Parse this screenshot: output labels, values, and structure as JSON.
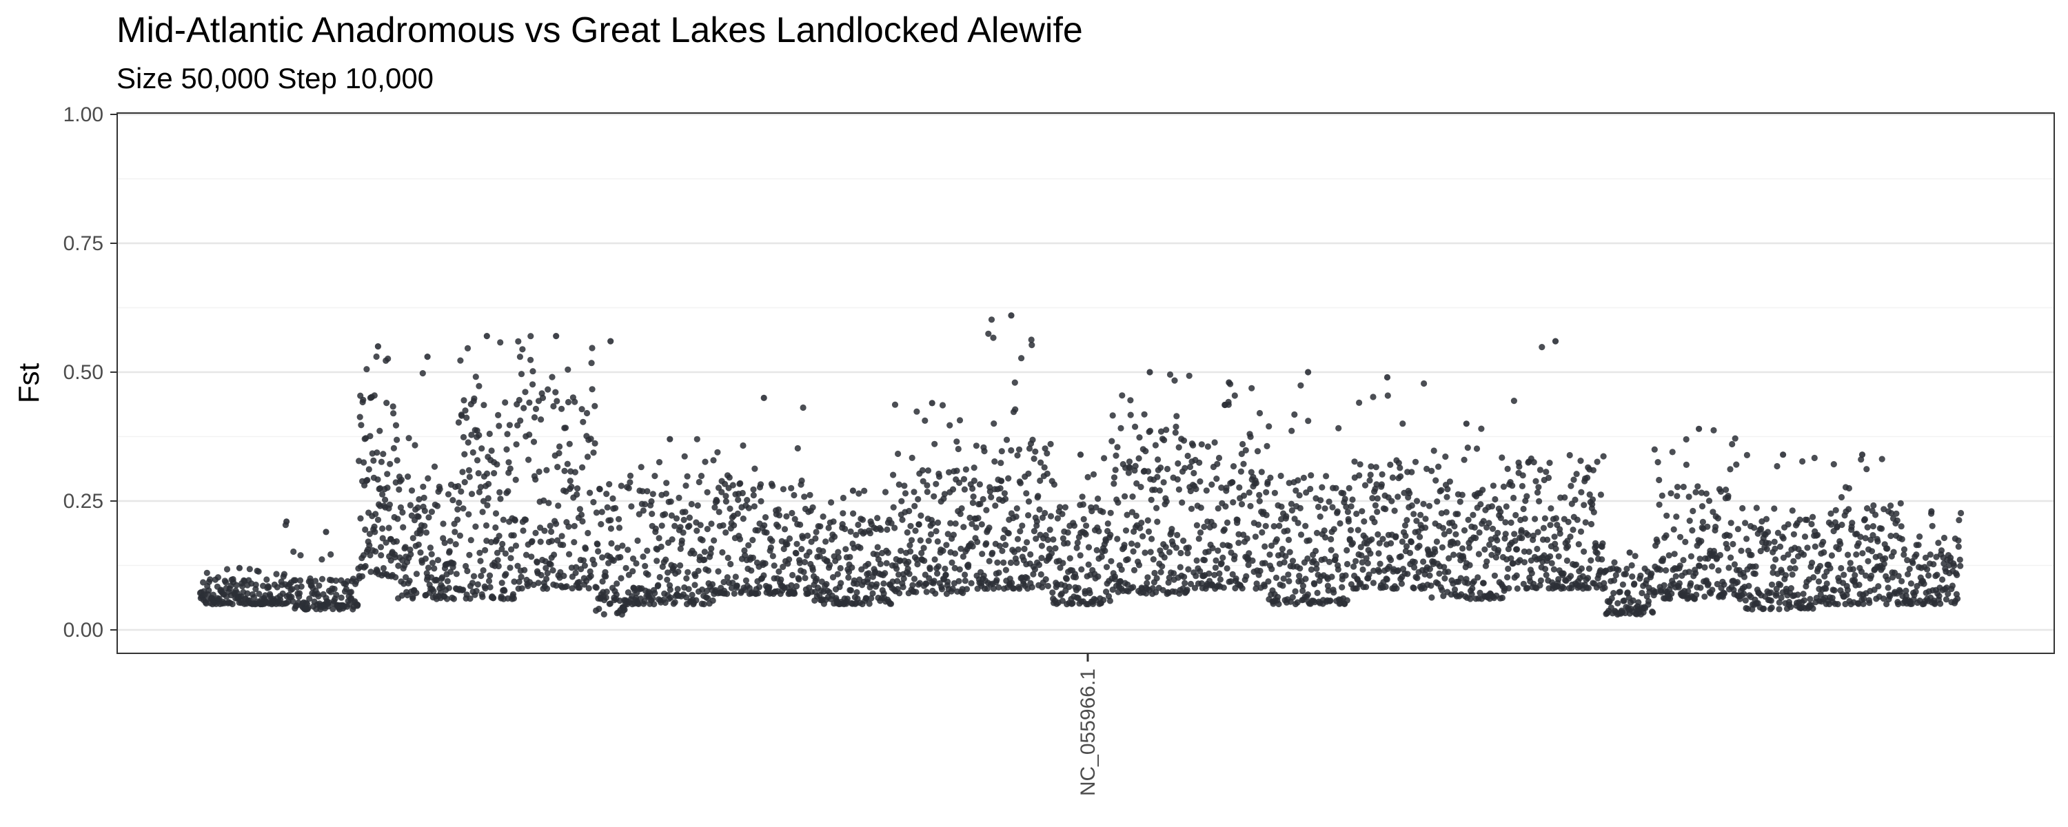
{
  "chart_data": {
    "type": "scatter",
    "title": "Mid-Atlantic Anadromous vs Great Lakes Landlocked Alewife",
    "subtitle": "Size 50,000 Step 10,000",
    "xlabel": "",
    "ylabel": "Fst",
    "ylim": [
      0,
      1
    ],
    "yticks": [
      {
        "value": 0.0,
        "label": "0.00"
      },
      {
        "value": 0.25,
        "label": "0.25"
      },
      {
        "value": 0.5,
        "label": "0.50"
      },
      {
        "value": 0.75,
        "label": "0.75"
      },
      {
        "value": 1.0,
        "label": "1.00"
      }
    ],
    "xticks": [
      {
        "label": "NC_055966.1"
      }
    ],
    "grid": true,
    "legend": "none",
    "point_color": "#2b2f36",
    "series": [
      {
        "chromosome": "NC_055966.1",
        "segments": [
          {
            "x": [
              0.0,
              0.08
            ],
            "lo": 0.05,
            "hi": 0.1,
            "peak": 0.12,
            "n": 140
          },
          {
            "x": [
              0.08,
              0.095
            ],
            "lo": 0.05,
            "hi": 0.11,
            "peak": 0.21,
            "n": 25
          },
          {
            "x": [
              0.095,
              0.16
            ],
            "lo": 0.04,
            "hi": 0.1,
            "peak": 0.19,
            "n": 110
          },
          {
            "x": [
              0.16,
              0.2
            ],
            "lo": 0.1,
            "hi": 0.46,
            "peak": 0.55,
            "n": 110
          },
          {
            "x": [
              0.2,
              0.26
            ],
            "lo": 0.06,
            "hi": 0.3,
            "peak": 0.53,
            "n": 140
          },
          {
            "x": [
              0.26,
              0.32
            ],
            "lo": 0.06,
            "hi": 0.45,
            "peak": 0.57,
            "n": 150
          },
          {
            "x": [
              0.32,
              0.4
            ],
            "lo": 0.08,
            "hi": 0.48,
            "peak": 0.57,
            "n": 180
          },
          {
            "x": [
              0.4,
              0.43
            ],
            "lo": 0.03,
            "hi": 0.28,
            "peak": 0.56,
            "n": 70
          },
          {
            "x": [
              0.43,
              0.52
            ],
            "lo": 0.05,
            "hi": 0.3,
            "peak": 0.37,
            "n": 200
          },
          {
            "x": [
              0.52,
              0.62
            ],
            "lo": 0.07,
            "hi": 0.3,
            "peak": 0.45,
            "n": 220
          },
          {
            "x": [
              0.62,
              0.7
            ],
            "lo": 0.05,
            "hi": 0.22,
            "peak": 0.27,
            "n": 180
          },
          {
            "x": [
              0.7,
              0.78
            ],
            "lo": 0.07,
            "hi": 0.32,
            "peak": 0.44,
            "n": 180
          },
          {
            "x": [
              0.78,
              0.86
            ],
            "lo": 0.08,
            "hi": 0.38,
            "peak": 0.61,
            "n": 190
          },
          {
            "x": [
              0.86,
              0.92
            ],
            "lo": 0.05,
            "hi": 0.25,
            "peak": 0.34,
            "n": 130
          },
          {
            "x": [
              0.92,
              1.0
            ],
            "lo": 0.07,
            "hi": 0.4,
            "peak": 0.5,
            "n": 190
          },
          {
            "x": [
              1.0,
              1.08
            ],
            "lo": 0.08,
            "hi": 0.38,
            "peak": 0.48,
            "n": 180
          },
          {
            "x": [
              1.08,
              1.16
            ],
            "lo": 0.05,
            "hi": 0.3,
            "peak": 0.5,
            "n": 180
          },
          {
            "x": [
              1.16,
              1.24
            ],
            "lo": 0.08,
            "hi": 0.33,
            "peak": 0.49,
            "n": 180
          },
          {
            "x": [
              1.24,
              1.32
            ],
            "lo": 0.06,
            "hi": 0.3,
            "peak": 0.4,
            "n": 180
          },
          {
            "x": [
              1.32,
              1.42
            ],
            "lo": 0.08,
            "hi": 0.34,
            "peak": 0.56,
            "n": 220
          },
          {
            "x": [
              1.42,
              1.47
            ],
            "lo": 0.03,
            "hi": 0.12,
            "peak": 0.15,
            "n": 90
          },
          {
            "x": [
              1.47,
              1.56
            ],
            "lo": 0.06,
            "hi": 0.28,
            "peak": 0.39,
            "n": 190
          },
          {
            "x": [
              1.56,
              1.64
            ],
            "lo": 0.04,
            "hi": 0.22,
            "peak": 0.34,
            "n": 170
          },
          {
            "x": [
              1.64,
              1.72
            ],
            "lo": 0.05,
            "hi": 0.26,
            "peak": 0.34,
            "n": 170
          },
          {
            "x": [
              1.72,
              1.78
            ],
            "lo": 0.05,
            "hi": 0.18,
            "peak": 0.23,
            "n": 110
          }
        ]
      }
    ]
  }
}
